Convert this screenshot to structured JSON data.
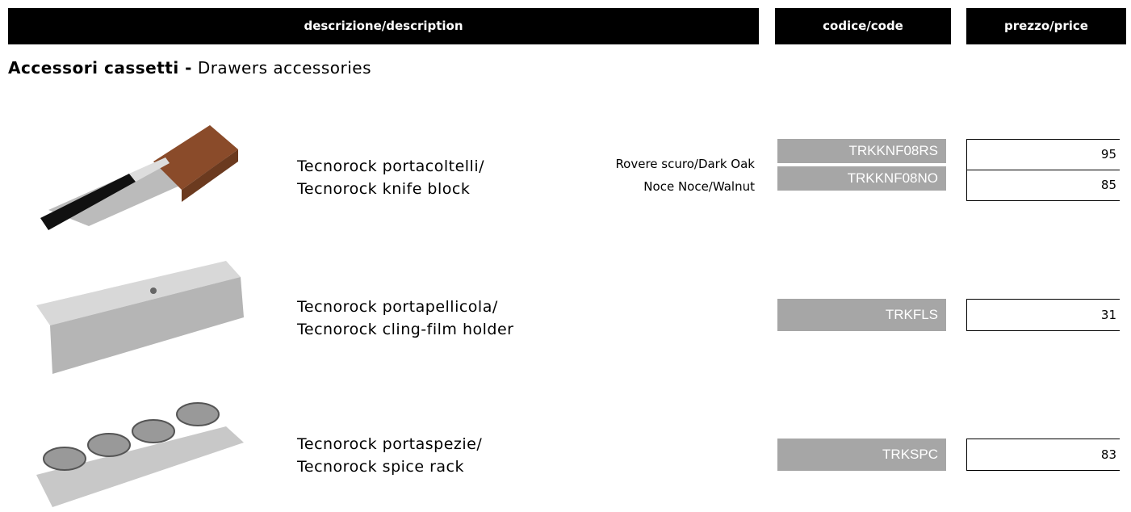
{
  "header": {
    "description": "descrizione/description",
    "code": "codice/code",
    "price": "prezzo/price"
  },
  "section": {
    "title_it": "Accessori cassetti -",
    "title_en": "Drawers accessories"
  },
  "products": [
    {
      "name": [
        "Tecnorock portacoltelli/",
        "Tecnorock knife block"
      ],
      "variants": [
        {
          "finish": "Rovere scuro/Dark Oak",
          "code": "TRKKNF08RS",
          "price": 95
        },
        {
          "finish": "Noce Noce/Walnut",
          "code": "TRKKNF08NO",
          "price": 85
        }
      ]
    },
    {
      "name": [
        "Tecnorock portapellicola/",
        "Tecnorock cling-film holder"
      ],
      "variants": [
        {
          "code": "TRKFLS",
          "price": 31
        }
      ]
    },
    {
      "name": [
        "Tecnorock portaspezie/",
        "Tecnorock spice rack"
      ],
      "variants": [
        {
          "code": "TRKSPC",
          "price": 83
        }
      ]
    }
  ]
}
